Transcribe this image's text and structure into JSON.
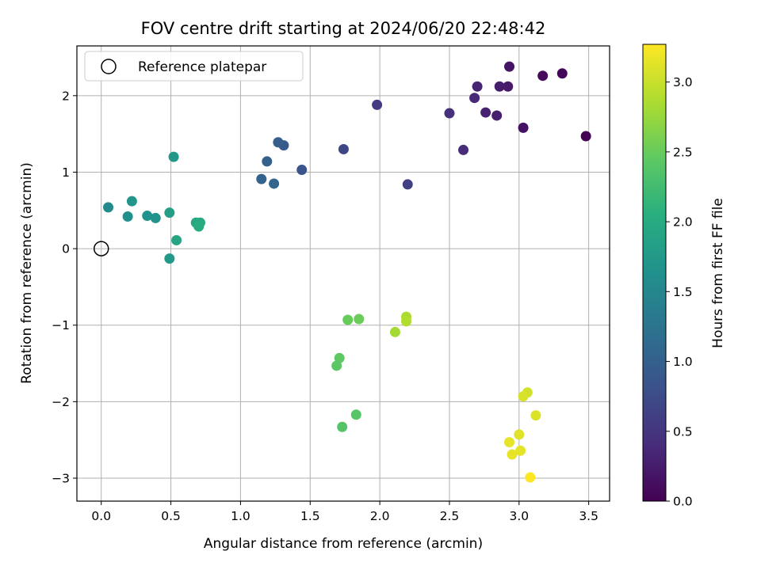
{
  "chart_data": {
    "type": "scatter",
    "title": "FOV centre drift starting at 2024/06/20 22:48:42",
    "xlabel": "Angular distance from reference (arcmin)",
    "ylabel": "Rotation from reference (arcmin)",
    "xlim": [
      -0.175,
      3.65
    ],
    "ylim": [
      -3.3,
      2.65
    ],
    "xticks": [
      0.0,
      0.5,
      1.0,
      1.5,
      2.0,
      2.5,
      3.0,
      3.5
    ],
    "xtick_labels": [
      "0.0",
      "0.5",
      "1.0",
      "1.5",
      "2.0",
      "2.5",
      "3.0",
      "3.5"
    ],
    "yticks": [
      -3,
      -2,
      -1,
      0,
      1,
      2
    ],
    "ytick_labels": [
      "−3",
      "−2",
      "−1",
      "0",
      "1",
      "2"
    ],
    "grid": true,
    "legend": {
      "position": "top-left",
      "entries": [
        "Reference platepar"
      ]
    },
    "reference_point": {
      "x": 0.0,
      "y": 0.0
    },
    "colorbar": {
      "label": "Hours from first FF file",
      "colormap": "viridis",
      "range": [
        0.0,
        3.27
      ],
      "ticks": [
        0.0,
        0.5,
        1.0,
        1.5,
        2.0,
        2.5,
        3.0
      ],
      "tick_labels": [
        "0.0",
        "0.5",
        "1.0",
        "1.5",
        "2.0",
        "2.5",
        "3.0"
      ]
    },
    "points": [
      {
        "x": 3.48,
        "y": 1.47,
        "c": 0.0
      },
      {
        "x": 3.31,
        "y": 2.29,
        "c": 0.05
      },
      {
        "x": 3.17,
        "y": 2.26,
        "c": 0.08
      },
      {
        "x": 3.03,
        "y": 1.58,
        "c": 0.15
      },
      {
        "x": 2.93,
        "y": 2.38,
        "c": 0.18
      },
      {
        "x": 2.92,
        "y": 2.12,
        "c": 0.22
      },
      {
        "x": 2.86,
        "y": 2.12,
        "c": 0.25
      },
      {
        "x": 2.84,
        "y": 1.74,
        "c": 0.28
      },
      {
        "x": 2.76,
        "y": 1.78,
        "c": 0.3
      },
      {
        "x": 2.7,
        "y": 2.12,
        "c": 0.33
      },
      {
        "x": 2.68,
        "y": 1.97,
        "c": 0.37
      },
      {
        "x": 2.6,
        "y": 1.29,
        "c": 0.4
      },
      {
        "x": 2.5,
        "y": 1.77,
        "c": 0.45
      },
      {
        "x": 1.98,
        "y": 1.88,
        "c": 0.55
      },
      {
        "x": 2.2,
        "y": 0.84,
        "c": 0.62
      },
      {
        "x": 1.74,
        "y": 1.3,
        "c": 0.7
      },
      {
        "x": 1.44,
        "y": 1.03,
        "c": 0.85
      },
      {
        "x": 1.31,
        "y": 1.35,
        "c": 0.92
      },
      {
        "x": 1.27,
        "y": 1.39,
        "c": 0.96
      },
      {
        "x": 1.19,
        "y": 1.14,
        "c": 1.0
      },
      {
        "x": 1.15,
        "y": 0.91,
        "c": 1.04
      },
      {
        "x": 1.24,
        "y": 0.85,
        "c": 1.08
      },
      {
        "x": 0.05,
        "y": 0.54,
        "c": 1.55
      },
      {
        "x": 0.19,
        "y": 0.42,
        "c": 1.62
      },
      {
        "x": 0.22,
        "y": 0.62,
        "c": 1.7
      },
      {
        "x": 0.33,
        "y": 0.43,
        "c": 1.65
      },
      {
        "x": 0.39,
        "y": 0.4,
        "c": 1.68
      },
      {
        "x": 0.49,
        "y": 0.47,
        "c": 1.82
      },
      {
        "x": 0.52,
        "y": 1.2,
        "c": 1.72
      },
      {
        "x": 0.49,
        "y": -0.13,
        "c": 1.75
      },
      {
        "x": 0.54,
        "y": 0.11,
        "c": 1.9
      },
      {
        "x": 0.68,
        "y": 0.34,
        "c": 1.95
      },
      {
        "x": 0.71,
        "y": 0.34,
        "c": 1.98
      },
      {
        "x": 0.7,
        "y": 0.29,
        "c": 2.0
      },
      {
        "x": 1.77,
        "y": -0.93,
        "c": 2.5
      },
      {
        "x": 1.85,
        "y": -0.92,
        "c": 2.52
      },
      {
        "x": 1.71,
        "y": -1.43,
        "c": 2.45
      },
      {
        "x": 1.69,
        "y": -1.53,
        "c": 2.42
      },
      {
        "x": 1.83,
        "y": -2.17,
        "c": 2.4
      },
      {
        "x": 1.73,
        "y": -2.33,
        "c": 2.38
      },
      {
        "x": 2.19,
        "y": -0.89,
        "c": 2.85
      },
      {
        "x": 2.19,
        "y": -0.95,
        "c": 2.88
      },
      {
        "x": 2.11,
        "y": -1.09,
        "c": 2.82
      },
      {
        "x": 3.06,
        "y": -1.88,
        "c": 3.05
      },
      {
        "x": 3.03,
        "y": -1.93,
        "c": 3.08
      },
      {
        "x": 3.12,
        "y": -2.18,
        "c": 3.1
      },
      {
        "x": 3.0,
        "y": -2.43,
        "c": 3.12
      },
      {
        "x": 2.93,
        "y": -2.53,
        "c": 3.15
      },
      {
        "x": 3.01,
        "y": -2.64,
        "c": 3.14
      },
      {
        "x": 2.95,
        "y": -2.69,
        "c": 3.16
      },
      {
        "x": 3.08,
        "y": -2.99,
        "c": 3.27
      }
    ]
  }
}
